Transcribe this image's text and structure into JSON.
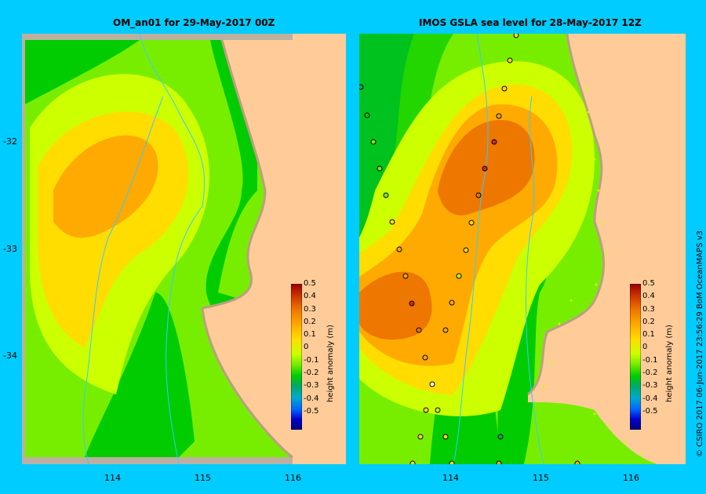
{
  "left_panel": {
    "title": "OM_an01  for 29-May-2017 00Z"
  },
  "right_panel": {
    "title": "IMOS  GSLA sea level   for 28-May-2017 12Z"
  },
  "axes": {
    "lat_ticks": [
      "-32",
      "-33",
      "-34"
    ],
    "left_lon_ticks": [
      "114",
      "115",
      "116"
    ],
    "right_lon_ticks": [
      "114",
      "115",
      "116"
    ]
  },
  "colorbar": {
    "label": "height anomaly (m)",
    "ticks": [
      "0.5",
      "0.4",
      "0.3",
      "0.2",
      "0.1",
      "0",
      "-0.1",
      "-0.2",
      "-0.3",
      "-0.4",
      "-0.5"
    ],
    "colors": [
      "#990000",
      "#cc3300",
      "#ee7700",
      "#ffaa00",
      "#ffdd00",
      "#ccff00",
      "#77ee00",
      "#00cc00",
      "#00aa66",
      "#00aacc",
      "#0066ff",
      "#0000cc",
      "#000080"
    ]
  },
  "credit": "© CSIRO 2017    06-Jun-2017 23:56:29 BoM OceanMAPS v3"
}
